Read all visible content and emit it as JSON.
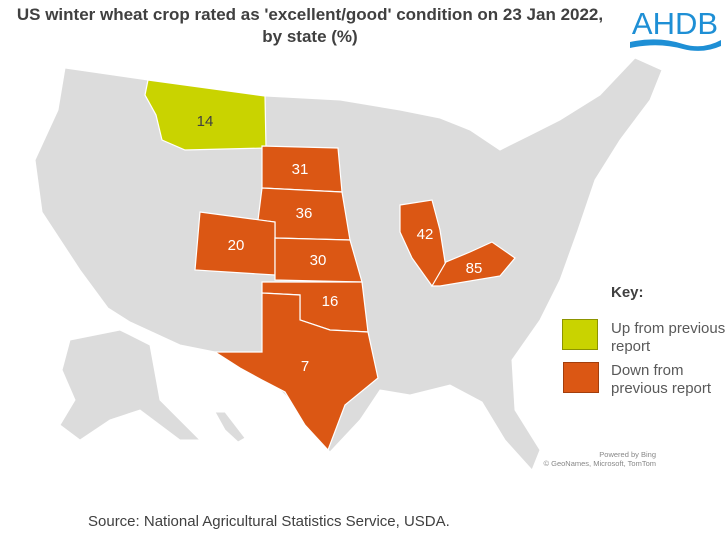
{
  "title": "US winter wheat crop rated as 'excellent/good' condition on 23 Jan 2022, by state (%)",
  "logo": "AHDB",
  "colors": {
    "up": "#c9d300",
    "down": "#db5714",
    "other": "#dcdcdc",
    "logo": "#1e8fd5"
  },
  "states": [
    {
      "name": "Montana",
      "value": "14",
      "change": "up"
    },
    {
      "name": "South Dakota",
      "value": "31",
      "change": "down"
    },
    {
      "name": "Nebraska",
      "value": "36",
      "change": "down"
    },
    {
      "name": "Colorado",
      "value": "20",
      "change": "down"
    },
    {
      "name": "Kansas",
      "value": "30",
      "change": "down"
    },
    {
      "name": "Oklahoma",
      "value": "16",
      "change": "down"
    },
    {
      "name": "Texas",
      "value": "7",
      "change": "down"
    },
    {
      "name": "Illinois",
      "value": "42",
      "change": "down"
    },
    {
      "name": "Kentucky",
      "value": "85",
      "change": "down"
    }
  ],
  "key": {
    "title": "Key:",
    "up": "Up from previous report",
    "down": "Down from previous report"
  },
  "attribution": {
    "line1": "Powered by Bing",
    "line2": "© GeoNames, Microsoft, TomTom"
  },
  "source": "Source: National Agricultural Statistics Service, USDA."
}
